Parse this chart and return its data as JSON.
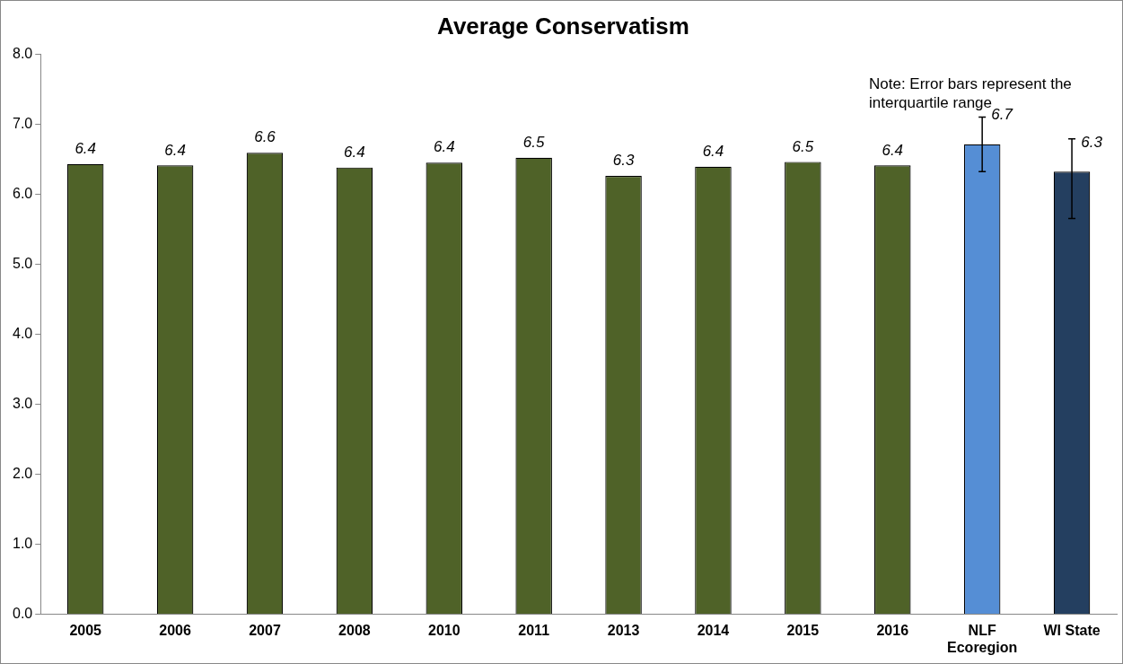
{
  "chart_data": {
    "type": "bar",
    "title": "Average Conservatism",
    "categories": [
      "2005",
      "2006",
      "2007",
      "2008",
      "2010",
      "2011",
      "2013",
      "2014",
      "2015",
      "2016",
      "NLF Ecoregion",
      "WI State"
    ],
    "values": [
      6.43,
      6.41,
      6.59,
      6.38,
      6.45,
      6.52,
      6.26,
      6.39,
      6.46,
      6.41,
      6.71,
      6.32
    ],
    "colors": [
      "#4f6228",
      "#4f6228",
      "#4f6228",
      "#4f6228",
      "#4f6228",
      "#4f6228",
      "#4f6228",
      "#4f6228",
      "#4f6228",
      "#4f6228",
      "#558ed5",
      "#243f60"
    ],
    "value_labels": [
      "6.4",
      "6.4",
      "6.6",
      "6.4",
      "6.4",
      "6.5",
      "6.3",
      "6.4",
      "6.5",
      "6.4",
      "6.7",
      "6.3"
    ],
    "errors": [
      null,
      null,
      null,
      null,
      null,
      null,
      null,
      null,
      null,
      null,
      [
        6.32,
        7.1
      ],
      [
        5.65,
        6.79
      ]
    ],
    "ylim": [
      0,
      8
    ],
    "yticks": [
      {
        "value": 0,
        "label": "0.0"
      },
      {
        "value": 1,
        "label": "1.0"
      },
      {
        "value": 2,
        "label": "2.0"
      },
      {
        "value": 3,
        "label": "3.0"
      },
      {
        "value": 4,
        "label": "4.0"
      },
      {
        "value": 5,
        "label": "5.0"
      },
      {
        "value": 6,
        "label": "6.0"
      },
      {
        "value": 7,
        "label": "7.0"
      },
      {
        "value": 8,
        "label": "8.0"
      }
    ],
    "grid": false,
    "legend": false,
    "annotations": [
      "Note: Error bars represent the interquartile range"
    ]
  }
}
